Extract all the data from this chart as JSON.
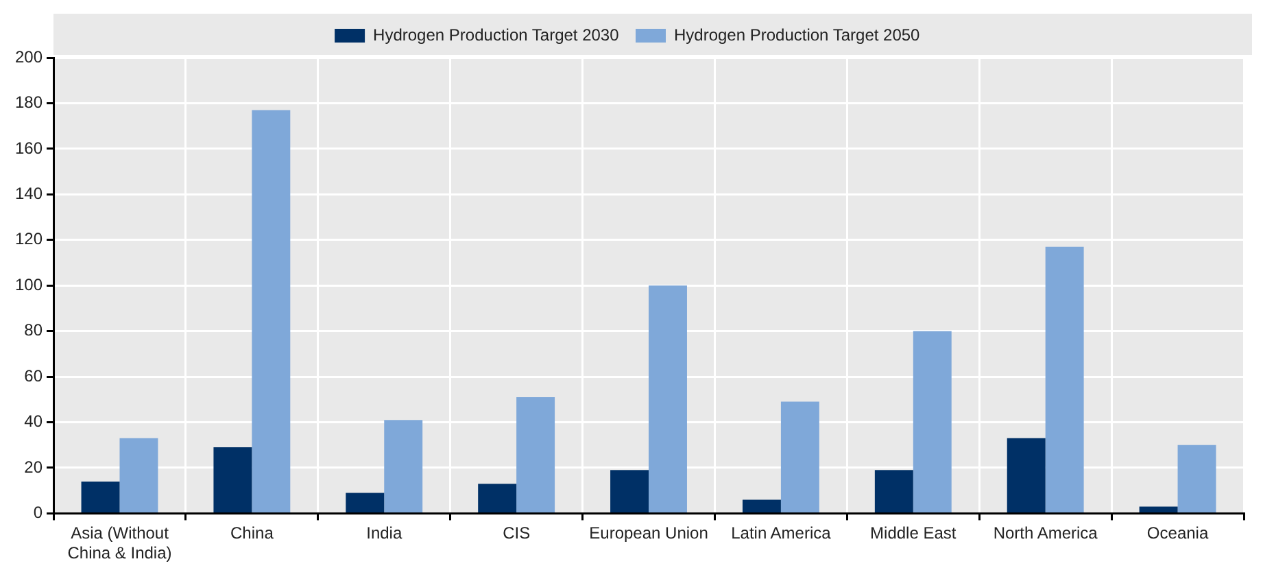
{
  "chart_data": {
    "type": "bar",
    "categories": [
      "Asia (Without China & India)",
      "China",
      "India",
      "CIS",
      "European Union",
      "Latin America",
      "Middle East",
      "North America",
      "Oceania"
    ],
    "series": [
      {
        "name": "Hydrogen Production Target 2030",
        "color": "#003066",
        "values": [
          14,
          29,
          9,
          13,
          19,
          6,
          19,
          33,
          3
        ]
      },
      {
        "name": "Hydrogen Production Target 2050",
        "color": "#7fa8d9",
        "values": [
          33,
          177,
          41,
          51,
          100,
          49,
          80,
          117,
          30
        ]
      }
    ],
    "ylim": [
      0,
      200
    ],
    "yticks": [
      0,
      20,
      40,
      60,
      80,
      100,
      120,
      140,
      160,
      180,
      200
    ],
    "grid": true,
    "legend": "top"
  }
}
